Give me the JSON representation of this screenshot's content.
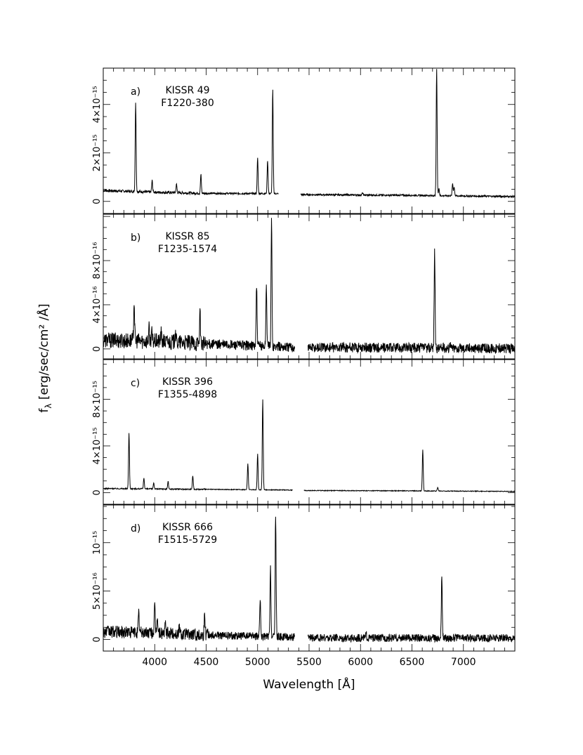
{
  "chart_data": [
    {
      "type": "line",
      "panel_label": "a)",
      "object_name": "KISSR 49",
      "object_id": "F1220-380",
      "xlim": [
        3500,
        7500
      ],
      "ylim": [
        -0.5,
        5.5
      ],
      "y_unit_exponent": -15,
      "yticks": [
        {
          "value": 0,
          "label": "0"
        },
        {
          "value": 2,
          "label": "2×10⁻¹⁵"
        },
        {
          "value": 4,
          "label": "4×10⁻¹⁵"
        }
      ],
      "segments": [
        [
          3500,
          5200
        ],
        [
          5420,
          7500
        ]
      ],
      "continuum": [
        [
          3500,
          0.45
        ],
        [
          4000,
          0.38
        ],
        [
          4500,
          0.33
        ],
        [
          5200,
          0.32
        ],
        [
          5420,
          0.28
        ],
        [
          6500,
          0.25
        ],
        [
          7500,
          0.2
        ]
      ],
      "lines": [
        {
          "x": 3815,
          "y": 4.1
        },
        {
          "x": 3975,
          "y": 0.85
        },
        {
          "x": 4212,
          "y": 0.7
        },
        {
          "x": 4449,
          "y": 1.1
        },
        {
          "x": 5000,
          "y": 1.8
        },
        {
          "x": 5097,
          "y": 1.7
        },
        {
          "x": 5147,
          "y": 4.6
        },
        {
          "x": 6020,
          "y": 0.35
        },
        {
          "x": 6740,
          "y": 5.5
        },
        {
          "x": 6762,
          "y": 0.55
        },
        {
          "x": 6895,
          "y": 0.75
        },
        {
          "x": 6910,
          "y": 0.6
        }
      ],
      "noise": 0.035
    },
    {
      "type": "line",
      "panel_label": "b)",
      "object_name": "KISSR 85",
      "object_id": "F1235-1574",
      "xlim": [
        3500,
        7500
      ],
      "ylim": [
        -0.9,
        12.2
      ],
      "y_unit_exponent": -16,
      "yticks": [
        {
          "value": 0,
          "label": "0"
        },
        {
          "value": 4,
          "label": "4×10⁻¹⁶"
        },
        {
          "value": 8,
          "label": "8×10⁻¹⁶"
        }
      ],
      "segments": [
        [
          3500,
          5360
        ],
        [
          5490,
          7500
        ]
      ],
      "continuum": [
        [
          3500,
          0.8
        ],
        [
          4000,
          0.7
        ],
        [
          4500,
          0.45
        ],
        [
          5360,
          0.15
        ],
        [
          5490,
          0.15
        ],
        [
          6500,
          0.1
        ],
        [
          7500,
          0.05
        ]
      ],
      "lines": [
        {
          "x": 3800,
          "y": 4.4
        },
        {
          "x": 3945,
          "y": 1.8
        },
        {
          "x": 3970,
          "y": 1.5
        },
        {
          "x": 4062,
          "y": 1.4
        },
        {
          "x": 4200,
          "y": 1.8
        },
        {
          "x": 4440,
          "y": 3.1
        },
        {
          "x": 4990,
          "y": 5.6
        },
        {
          "x": 5085,
          "y": 5.8
        },
        {
          "x": 5135,
          "y": 11.8
        },
        {
          "x": 6720,
          "y": 8.9
        },
        {
          "x": 6870,
          "y": 0.6
        }
      ],
      "noise": 0.45
    },
    {
      "type": "line",
      "panel_label": "c)",
      "object_name": "KISSR 396",
      "object_id": "F1355-4898",
      "xlim": [
        3500,
        7500
      ],
      "ylim": [
        -1.0,
        11.4
      ],
      "y_unit_exponent": -15,
      "yticks": [
        {
          "value": 0,
          "label": "0"
        },
        {
          "value": 4,
          "label": "4×10⁻¹⁵"
        },
        {
          "value": 8,
          "label": "8×10⁻¹⁵"
        }
      ],
      "segments": [
        [
          3500,
          5340
        ],
        [
          5450,
          7500
        ]
      ],
      "continuum": [
        [
          3500,
          0.35
        ],
        [
          4500,
          0.28
        ],
        [
          5340,
          0.22
        ],
        [
          5450,
          0.18
        ],
        [
          6500,
          0.15
        ],
        [
          7500,
          0.1
        ]
      ],
      "lines": [
        {
          "x": 3750,
          "y": 5.1
        },
        {
          "x": 3895,
          "y": 1.25
        },
        {
          "x": 3990,
          "y": 0.85
        },
        {
          "x": 4130,
          "y": 0.95
        },
        {
          "x": 4370,
          "y": 1.45
        },
        {
          "x": 4905,
          "y": 2.5
        },
        {
          "x": 5000,
          "y": 3.3
        },
        {
          "x": 5050,
          "y": 8.0
        },
        {
          "x": 6605,
          "y": 3.7
        },
        {
          "x": 6750,
          "y": 0.45
        }
      ],
      "noise": 0.03
    },
    {
      "type": "line",
      "panel_label": "d)",
      "object_name": "KISSR 666",
      "object_id": "F1515-5729",
      "xlim": [
        3500,
        7500
      ],
      "ylim": [
        -1.2,
        13.9
      ],
      "y_unit_exponent": -16,
      "yticks": [
        {
          "value": 0,
          "label": "0"
        },
        {
          "value": 5,
          "label": "5×10⁻¹⁶"
        },
        {
          "value": 10,
          "label": "10⁻¹⁵"
        }
      ],
      "segments": [
        [
          3500,
          5360
        ],
        [
          5490,
          7500
        ]
      ],
      "continuum": [
        [
          3500,
          0.8
        ],
        [
          4000,
          0.7
        ],
        [
          4500,
          0.45
        ],
        [
          5360,
          0.25
        ],
        [
          5490,
          0.15
        ],
        [
          6500,
          0.15
        ],
        [
          7500,
          0.15
        ]
      ],
      "lines": [
        {
          "x": 3845,
          "y": 2.7
        },
        {
          "x": 4000,
          "y": 3.3
        },
        {
          "x": 4025,
          "y": 2.5
        },
        {
          "x": 4105,
          "y": 1.6
        },
        {
          "x": 4240,
          "y": 1.4
        },
        {
          "x": 4485,
          "y": 2.6
        },
        {
          "x": 4510,
          "y": 1.2
        },
        {
          "x": 5025,
          "y": 4.0
        },
        {
          "x": 5125,
          "y": 7.3
        },
        {
          "x": 5175,
          "y": 13.0
        },
        {
          "x": 6055,
          "y": 0.55
        },
        {
          "x": 6790,
          "y": 6.6
        }
      ],
      "noise": 0.4
    }
  ],
  "shared_x_axis": {
    "label": "Wavelength [Å]",
    "ticks": [
      4000,
      4500,
      5000,
      5500,
      6000,
      6500,
      7000
    ]
  },
  "shared_y_axis": {
    "label": "f",
    "label_subscript": "λ",
    "label_unit": " [erg/sec/cm² /Å]"
  }
}
